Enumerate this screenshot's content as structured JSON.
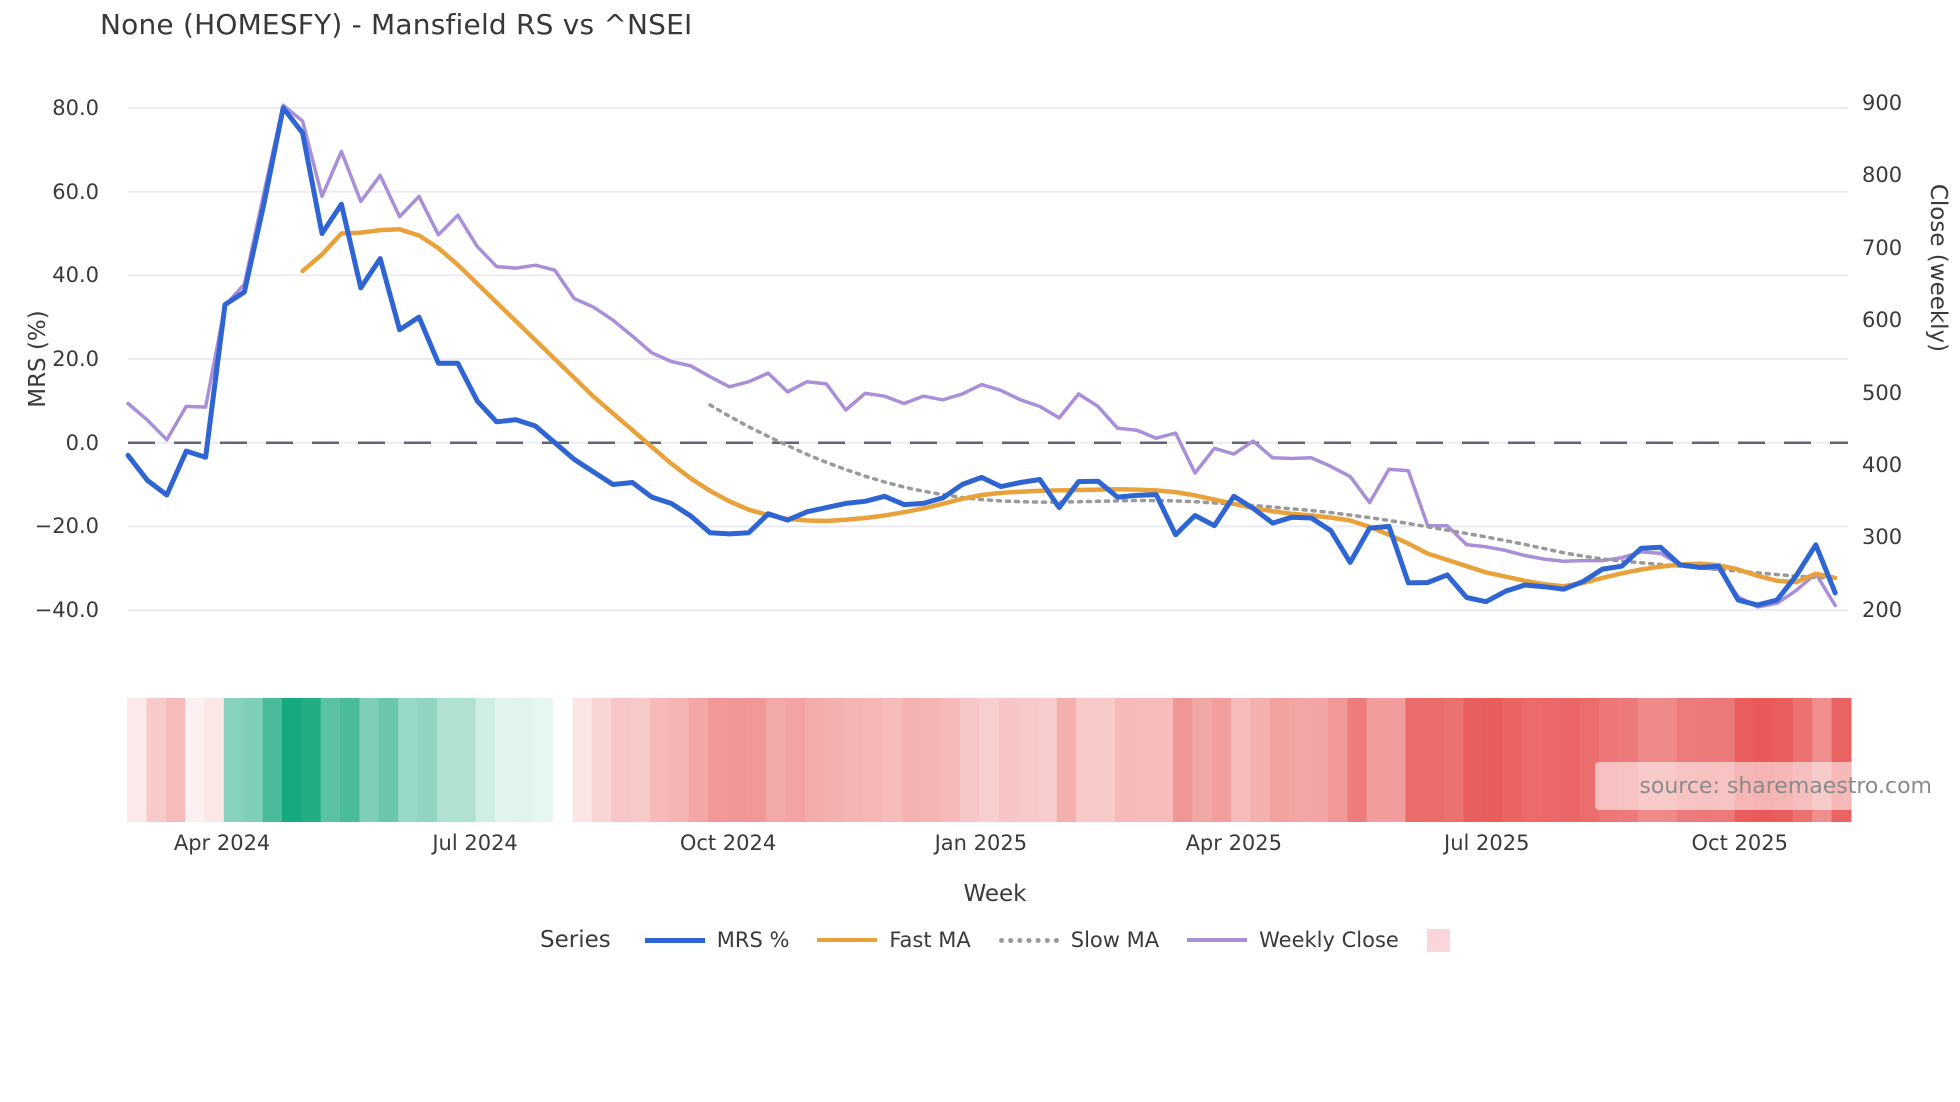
{
  "title": "None (HOMESFY) - Mansfield RS vs ^NSEI",
  "source_badge": {
    "text": "source: sharemaestro.com"
  },
  "legend": {
    "title": "Series"
  },
  "colors": {
    "mrs": "#2f65d3",
    "fast_ma": "#e9a23b",
    "slow_ma": "#999999",
    "weekly_close": "#a98fd8",
    "heat_swatch": "#f8d6d9",
    "grid": "#ebebf2",
    "zero_line": "#5f6575",
    "text": "#3a3a3a"
  },
  "chart_data": {
    "type": "line",
    "title": "None (HOMESFY) - Mansfield RS vs ^NSEI",
    "xlabel": "Week",
    "x_tick_labels": [
      "Apr 2024",
      "Jul 2024",
      "Oct 2024",
      "Jan 2025",
      "Apr 2025",
      "Jul 2025",
      "Oct 2025"
    ],
    "x_tick_week_index": [
      4.85,
      17.89,
      30.93,
      43.96,
      57.0,
      70.04,
      83.08
    ],
    "n_weeks": 89,
    "y_left": {
      "label": "MRS (%)",
      "ticks": [
        80,
        60,
        40,
        20,
        0,
        -20,
        -40
      ],
      "tick_labels": [
        "80.0",
        "60.0",
        "40.0",
        "20.0",
        "0.0",
        "−20.0",
        "−40.0"
      ]
    },
    "y_right": {
      "label": "Close (weekly)",
      "ticks": [
        900,
        800,
        700,
        600,
        500,
        400,
        300,
        200
      ],
      "tick_labels": [
        "900",
        "800",
        "700",
        "600",
        "500",
        "400",
        "300",
        "200"
      ]
    },
    "zero_line": {
      "value": 0,
      "style": "dashed",
      "color": "#5f6575"
    },
    "grid": true,
    "legend_position": "bottom",
    "series": [
      {
        "name": "MRS %",
        "axis": "left",
        "color": "#2f65d3",
        "style": "solid",
        "width": 5,
        "values": [
          -3,
          -9,
          -12.5,
          -2,
          -3.5,
          33,
          36,
          57,
          80,
          74,
          50,
          57,
          37,
          44,
          27,
          30,
          19,
          19,
          10,
          5,
          5.5,
          4,
          0,
          -4,
          -7,
          -10,
          -9.5,
          -13,
          -14.5,
          -17.5,
          -21.5,
          -21.8,
          -21.5,
          -17,
          -18.5,
          -16.5,
          -15.5,
          -14.5,
          -14,
          -12.8,
          -14.8,
          -14.5,
          -13.2,
          -10,
          -8.3,
          -10.5,
          -9.5,
          -8.8,
          -15.5,
          -9.3,
          -9.2,
          -13,
          -12.6,
          -12.4,
          -22,
          -17.4,
          -19.8,
          -12.8,
          -15.7,
          -19.2,
          -17.8,
          -18,
          -21,
          -28.6,
          -20.4,
          -20,
          -33.5,
          -33.4,
          -31.6,
          -37,
          -38,
          -35.5,
          -34,
          -34.4,
          -35,
          -33.2,
          -30.2,
          -29.5,
          -25.2,
          -25,
          -29.2,
          -29.8,
          -29.5,
          -37.6,
          -38.8,
          -37.6,
          -31.7,
          -24.4,
          -35.9
        ]
      },
      {
        "name": "Fast MA",
        "axis": "left",
        "color": "#e9a23b",
        "style": "solid",
        "width": 4.5,
        "values": [
          null,
          null,
          null,
          null,
          null,
          null,
          null,
          null,
          null,
          41,
          45,
          50,
          50.2,
          50.8,
          51,
          49.5,
          46.5,
          42.5,
          38,
          33.5,
          29,
          24.5,
          20,
          15.5,
          11,
          7,
          3,
          -1,
          -5,
          -8.5,
          -11.5,
          -14,
          -16,
          -17.3,
          -18.2,
          -18.6,
          -18.7,
          -18.4,
          -18,
          -17.4,
          -16.6,
          -15.7,
          -14.6,
          -13.4,
          -12.5,
          -12,
          -11.7,
          -11.5,
          -11.4,
          -11.3,
          -11.2,
          -11.1,
          -11.2,
          -11.4,
          -11.8,
          -12.6,
          -13.6,
          -14.6,
          -15.6,
          -16.4,
          -17,
          -17.4,
          -17.9,
          -18.6,
          -20.1,
          -22,
          -24.1,
          -26.5,
          -28,
          -29.5,
          -31,
          -32,
          -33,
          -33.8,
          -34.3,
          -33.5,
          -32.3,
          -31.2,
          -30.3,
          -29.6,
          -29.1,
          -28.9,
          -29.3,
          -30.3,
          -31.8,
          -33,
          -33.3,
          -31.3,
          -32.3
        ]
      },
      {
        "name": "Slow MA",
        "axis": "left",
        "color": "#999999",
        "style": "dotted",
        "width": 3.5,
        "values": [
          null,
          null,
          null,
          null,
          null,
          null,
          null,
          null,
          null,
          null,
          null,
          null,
          null,
          null,
          null,
          null,
          null,
          null,
          null,
          null,
          null,
          null,
          null,
          null,
          null,
          null,
          null,
          null,
          null,
          null,
          9,
          6.3,
          3.8,
          1.5,
          -0.7,
          -2.8,
          -4.7,
          -6.4,
          -8,
          -9.4,
          -10.6,
          -11.6,
          -12.4,
          -13.1,
          -13.6,
          -13.9,
          -14.1,
          -14.2,
          -14.2,
          -14.1,
          -14,
          -13.9,
          -13.8,
          -13.8,
          -13.9,
          -14.1,
          -14.4,
          -14.7,
          -15,
          -15.4,
          -15.8,
          -16.2,
          -16.7,
          -17.3,
          -17.9,
          -18.6,
          -19.3,
          -20.1,
          -20.9,
          -21.7,
          -22.5,
          -23.4,
          -24.3,
          -25.3,
          -26.3,
          -27.1,
          -27.8,
          -28.3,
          -28.7,
          -29.1,
          -29.5,
          -29.9,
          -30.3,
          -30.7,
          -31.1,
          -31.5,
          -31.9,
          -32.2,
          -32.4
        ]
      },
      {
        "name": "Weekly Close",
        "axis": "right",
        "color": "#a98fd8",
        "style": "solid",
        "width": 3.5,
        "values": [
          485,
          462,
          435,
          481,
          480,
          620,
          650,
          775,
          897,
          875,
          771,
          833,
          764,
          800,
          743,
          771,
          718,
          745,
          702,
          674,
          672,
          676,
          669,
          630,
          618,
          600,
          578,
          555,
          543,
          537,
          522,
          508,
          515,
          527,
          501,
          515,
          512,
          476,
          499,
          495,
          485,
          495,
          490,
          498,
          511,
          503,
          490,
          481,
          465,
          498,
          481,
          451,
          448,
          437,
          444,
          389,
          423,
          415,
          433,
          410,
          409,
          410,
          398,
          384,
          348,
          394,
          392,
          316,
          316,
          290,
          287,
          282,
          275,
          270,
          267,
          268,
          268,
          272,
          280,
          278,
          262,
          258,
          256,
          218,
          204,
          209,
          227,
          250,
          206
        ]
      }
    ],
    "heatmap": {
      "derived_from": "MRS %",
      "positive_color": "#16a87e",
      "negative_color": "#e85555",
      "legend_swatch_color": "#f8d6d9"
    }
  }
}
